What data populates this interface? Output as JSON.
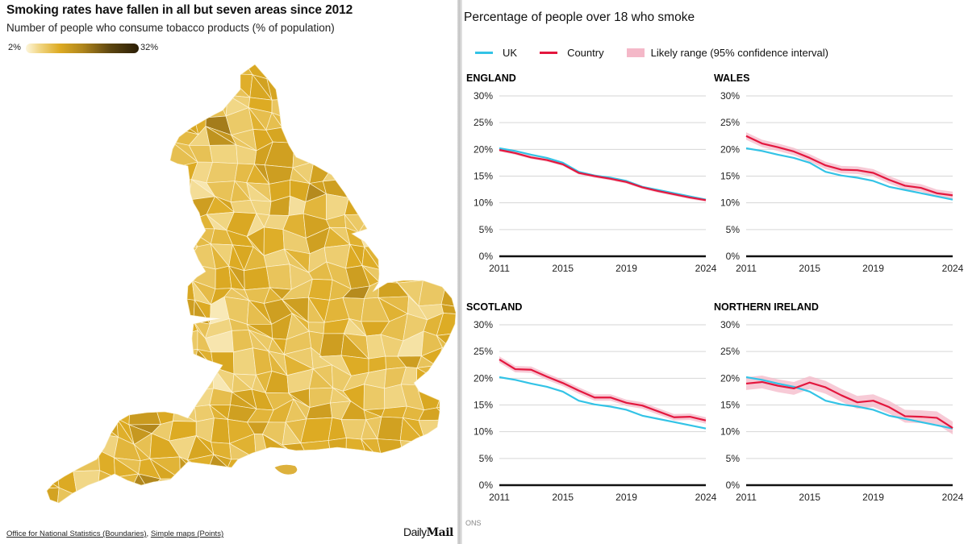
{
  "map": {
    "title": "Smoking rates have fallen in all but seven areas since 2012",
    "subtitle": "Number of people who consume tobacco products (% of population)",
    "legend_min": "2%",
    "legend_max": "32%",
    "color_scale": [
      "#fdf6dc",
      "#f1d684",
      "#ddab23",
      "#b0861d",
      "#5c4510",
      "#2b1e06"
    ],
    "credits": {
      "link1": "Office for National Statistics (Boundaries)",
      "separator": ", ",
      "link2": "Simple maps (Points)"
    },
    "logo_daily": "Daily",
    "logo_mail": "Mail"
  },
  "right": {
    "source_fragment": "ONS"
  },
  "chart_data": {
    "type": "line",
    "title": "Percentage of people over 18 who smoke",
    "legend": [
      {
        "name": "UK",
        "color": "#33c3e6"
      },
      {
        "name": "Country",
        "color": "#e3173e"
      },
      {
        "name": "Likely range (95% confidence interval)",
        "color": "#f4b8c8"
      }
    ],
    "legend_placement": "top",
    "x": [
      2011,
      2012,
      2013,
      2014,
      2015,
      2016,
      2017,
      2018,
      2019,
      2020,
      2021,
      2022,
      2023,
      2024
    ],
    "x_ticks": [
      "2011",
      "2015",
      "2019",
      "2024"
    ],
    "y_ticks": [
      "0%",
      "5%",
      "10%",
      "15%",
      "20%",
      "25%",
      "30%"
    ],
    "ylim": [
      0,
      30
    ],
    "grid": true,
    "uk": [
      20.2,
      19.7,
      19.0,
      18.4,
      17.5,
      15.8,
      15.1,
      14.7,
      14.1,
      13.0,
      12.4,
      11.8,
      11.2,
      10.6
    ],
    "panels": [
      {
        "name": "ENGLAND",
        "country": [
          19.9,
          19.3,
          18.5,
          18.0,
          17.2,
          15.6,
          15.0,
          14.5,
          13.9,
          12.9,
          12.2,
          11.6,
          11.0,
          10.5
        ],
        "ci": 0.3
      },
      {
        "name": "WALES",
        "country": [
          22.5,
          21.1,
          20.4,
          19.6,
          18.4,
          17.0,
          16.2,
          16.1,
          15.6,
          14.3,
          13.2,
          12.8,
          11.8,
          11.4
        ],
        "ci": 0.7
      },
      {
        "name": "SCOTLAND",
        "country": [
          23.5,
          21.7,
          21.6,
          20.3,
          19.1,
          17.7,
          16.4,
          16.4,
          15.4,
          14.9,
          13.8,
          12.7,
          12.8,
          12.1
        ],
        "ci": 0.6
      },
      {
        "name": "NORTHERN IRELAND",
        "country": [
          19.0,
          19.3,
          18.6,
          18.1,
          19.2,
          18.3,
          16.8,
          15.5,
          15.8,
          14.6,
          12.9,
          12.8,
          12.6,
          10.7
        ],
        "ci": 1.2
      }
    ]
  }
}
